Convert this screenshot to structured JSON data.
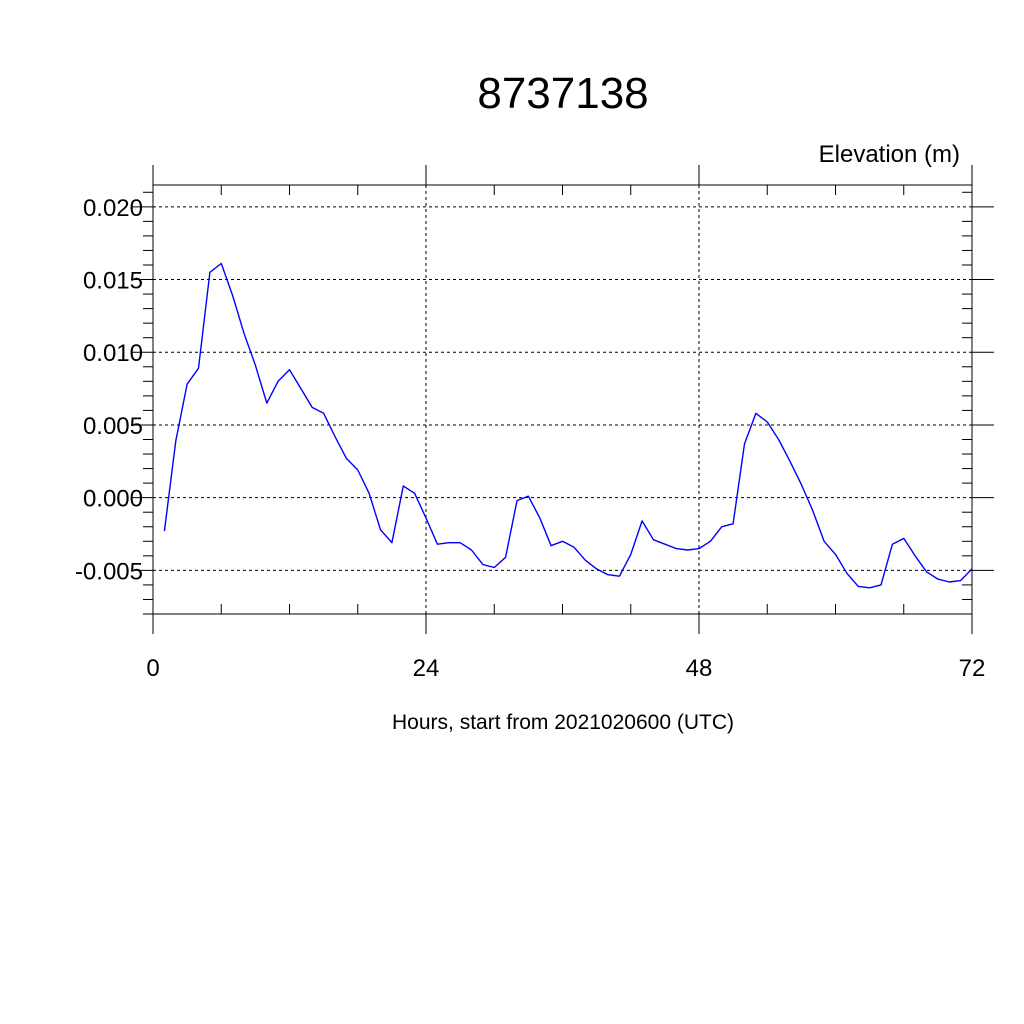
{
  "chart_data": {
    "type": "line",
    "title": "8737138",
    "ylabel": "Elevation (m)",
    "xlabel": "Hours, start from 2021020600 (UTC)",
    "xlim": [
      0,
      72
    ],
    "ylim": [
      -0.008,
      0.0215
    ],
    "x_ticks": [
      0,
      24,
      48,
      72
    ],
    "x_tick_labels": [
      "0",
      "24",
      "48",
      "72"
    ],
    "y_ticks": [
      -0.005,
      0.0,
      0.005,
      0.01,
      0.015,
      0.02
    ],
    "y_tick_labels": [
      "-0.005",
      "0.000",
      "0.005",
      "0.010",
      "0.015",
      "0.020"
    ],
    "grid": true,
    "series_color": "#0000ff",
    "series": [
      {
        "x": [
          1,
          2,
          3,
          4,
          5,
          6,
          7,
          8,
          9,
          10,
          11,
          12,
          13,
          14,
          15,
          16,
          17,
          18,
          19,
          20,
          21,
          22,
          23,
          24,
          25,
          26,
          27,
          28,
          29,
          30,
          31,
          32,
          33,
          34,
          35,
          36,
          37,
          38,
          39,
          40,
          41,
          42,
          43,
          44,
          45,
          46,
          47,
          48,
          49,
          50,
          51,
          52,
          53,
          54,
          55,
          56,
          57,
          58,
          59,
          60,
          61,
          62,
          63,
          64,
          65,
          66,
          67,
          68,
          69,
          70,
          71,
          72
        ],
        "values": [
          -0.0023,
          0.0039,
          0.0078,
          0.0089,
          0.0155,
          0.0161,
          0.0139,
          0.0113,
          0.0091,
          0.0065,
          0.008,
          0.0088,
          0.0075,
          0.0062,
          0.0058,
          0.0042,
          0.0027,
          0.0019,
          0.0003,
          -0.0022,
          -0.0031,
          0.0008,
          0.0003,
          -0.0014,
          -0.0032,
          -0.0031,
          -0.0031,
          -0.0036,
          -0.0046,
          -0.0048,
          -0.0041,
          -0.0002,
          0.0001,
          -0.0014,
          -0.0033,
          -0.003,
          -0.0034,
          -0.0043,
          -0.0049,
          -0.0053,
          -0.0054,
          -0.0039,
          -0.0016,
          -0.0029,
          -0.0032,
          -0.0035,
          -0.0036,
          -0.0035,
          -0.003,
          -0.002,
          -0.0018,
          0.0037,
          0.0058,
          0.0052,
          0.004,
          0.0025,
          0.0009,
          -0.0009,
          -0.003,
          -0.0039,
          -0.0052,
          -0.0061,
          -0.0062,
          -0.006,
          -0.0032,
          -0.0028,
          -0.004,
          -0.0051,
          -0.0056,
          -0.0058,
          -0.0057,
          -0.0049
        ]
      }
    ]
  }
}
